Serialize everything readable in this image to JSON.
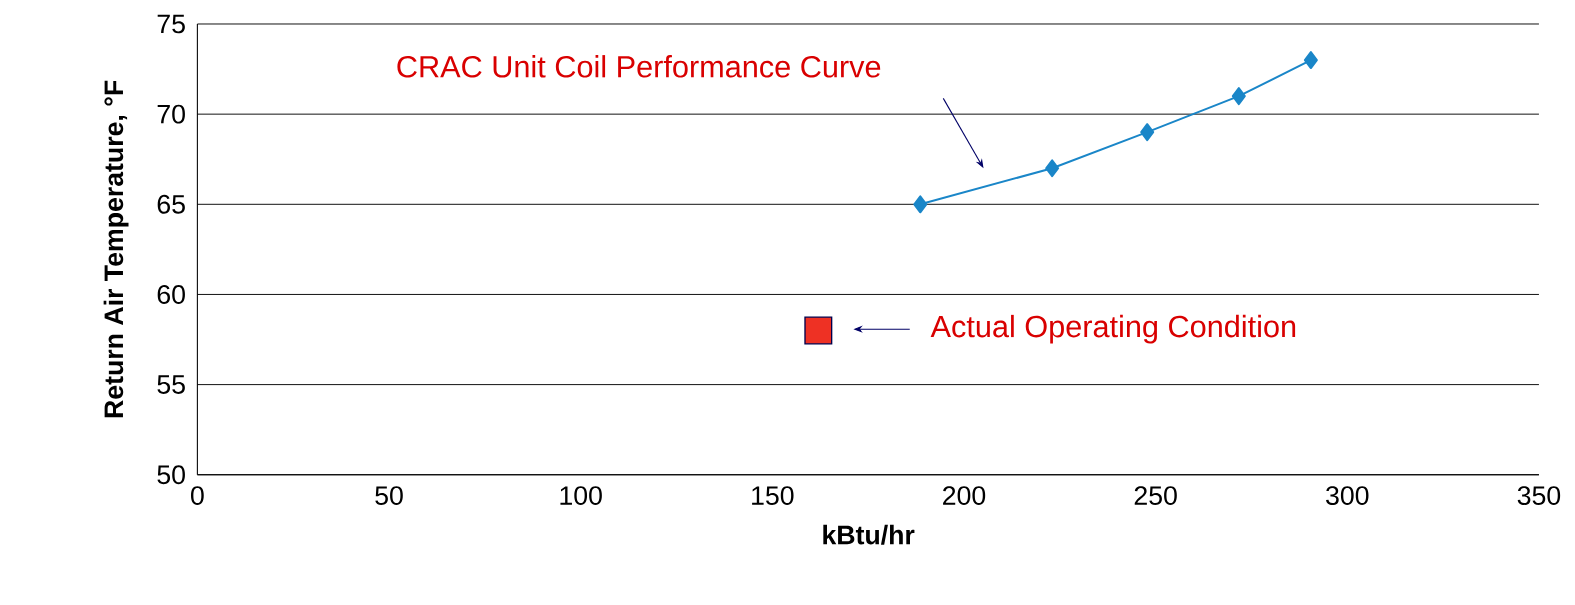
{
  "chart_data": {
    "type": "line",
    "xlabel": "kBtu/hr",
    "ylabel": "Return Air Temperature, °F",
    "series": [
      {
        "type": "line",
        "color": "#1a86c8",
        "marker": "diamond",
        "x": [
          188.6,
          223,
          247.8,
          271.7,
          290.5
        ],
        "values": [
          65,
          67,
          69,
          71,
          73
        ]
      },
      {
        "type": "scatter",
        "color": "#ee3124",
        "marker": "square",
        "x": [
          162
        ],
        "values": [
          58
        ]
      }
    ],
    "xlim": [
      0,
      350
    ],
    "xticks": [
      0,
      50,
      100,
      150,
      200,
      250,
      300,
      350
    ],
    "ylim": [
      50,
      75
    ],
    "yticks": [
      50,
      55,
      60,
      65,
      70,
      75
    ],
    "grid": "y",
    "annotations": [
      "CRAC Unit Coil Performance Curve",
      "Actual Operating Condition"
    ]
  }
}
